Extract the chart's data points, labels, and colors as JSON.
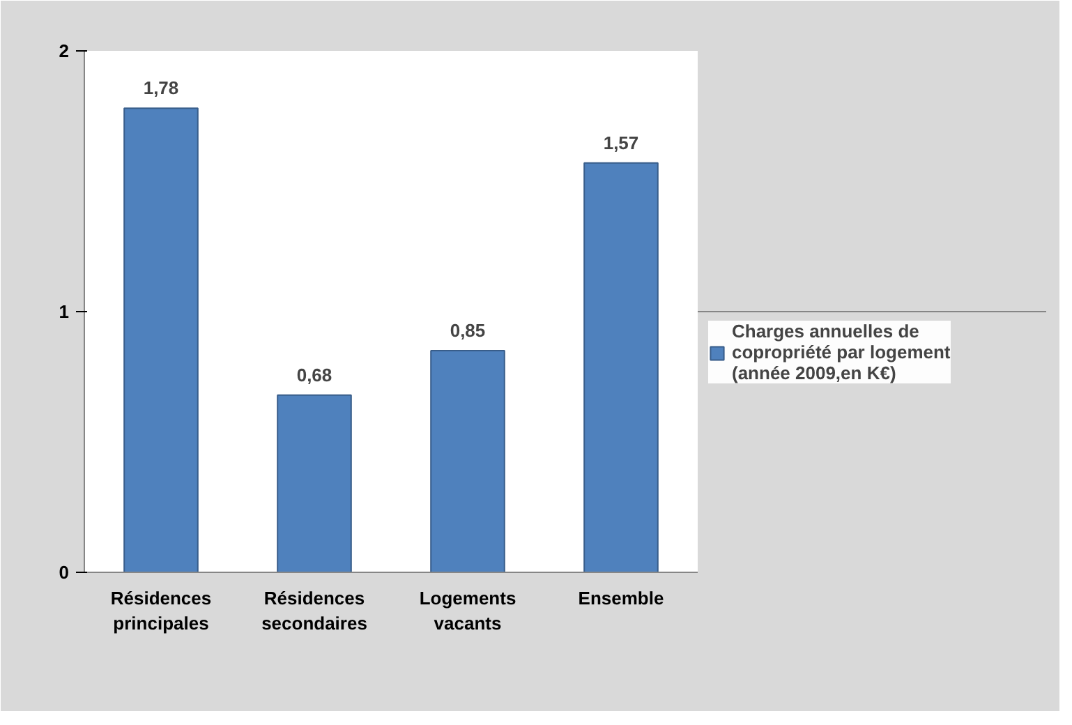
{
  "chart_data": {
    "type": "bar",
    "categories": [
      "Résidences principales",
      "Résidences secondaires",
      "Logements vacants",
      "Ensemble"
    ],
    "series": [
      {
        "name": "Charges annuelles de copropriété par logement (année 2009,en K€)",
        "color": "#4f81bd",
        "values": [
          1.78,
          0.68,
          0.85,
          1.57
        ],
        "value_labels": [
          "1,78",
          "0,68",
          "0,85",
          "1,57"
        ]
      }
    ],
    "ylim": [
      0,
      2
    ],
    "yticks": [
      0,
      1,
      2
    ],
    "grid": "y",
    "legend": "right"
  }
}
